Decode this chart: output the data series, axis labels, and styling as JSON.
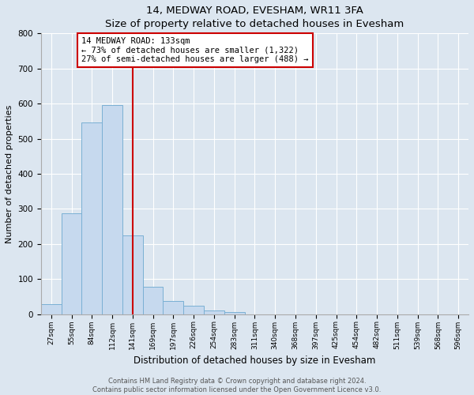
{
  "title": "14, MEDWAY ROAD, EVESHAM, WR11 3FA",
  "subtitle": "Size of property relative to detached houses in Evesham",
  "xlabel": "Distribution of detached houses by size in Evesham",
  "ylabel": "Number of detached properties",
  "bar_labels": [
    "27sqm",
    "55sqm",
    "84sqm",
    "112sqm",
    "141sqm",
    "169sqm",
    "197sqm",
    "226sqm",
    "254sqm",
    "283sqm",
    "311sqm",
    "340sqm",
    "368sqm",
    "397sqm",
    "425sqm",
    "454sqm",
    "482sqm",
    "511sqm",
    "539sqm",
    "568sqm",
    "596sqm"
  ],
  "bar_heights": [
    28,
    288,
    547,
    596,
    224,
    78,
    37,
    24,
    10,
    5,
    0,
    0,
    0,
    0,
    0,
    0,
    0,
    0,
    0,
    0,
    0
  ],
  "bar_color": "#c6d9ee",
  "bar_edge_color": "#7ab0d4",
  "property_line_color": "#cc0000",
  "annotation_line1": "14 MEDWAY ROAD: 133sqm",
  "annotation_line2": "← 73% of detached houses are smaller (1,322)",
  "annotation_line3": "27% of semi-detached houses are larger (488) →",
  "annotation_box_color": "#ffffff",
  "annotation_box_edge": "#cc0000",
  "ylim": [
    0,
    800
  ],
  "yticks": [
    0,
    100,
    200,
    300,
    400,
    500,
    600,
    700,
    800
  ],
  "footer_text": "Contains HM Land Registry data © Crown copyright and database right 2024.\nContains public sector information licensed under the Open Government Licence v3.0.",
  "bg_color": "#dce6f0",
  "plot_bg_color": "#dce6f0",
  "grid_color": "#ffffff"
}
